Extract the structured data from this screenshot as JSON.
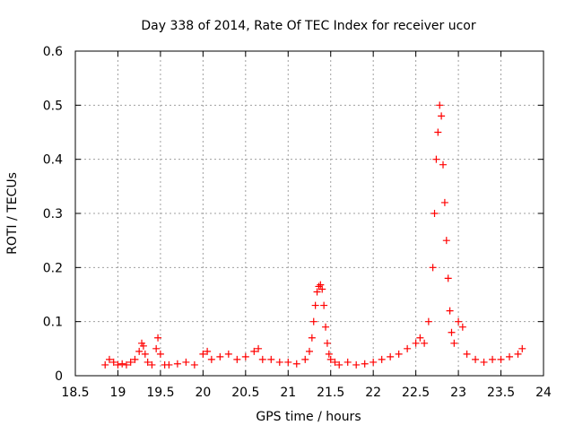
{
  "chart_data": {
    "type": "scatter",
    "title": "Day 338 of 2014, Rate Of TEC Index for receiver ucor",
    "xlabel": "GPS time / hours",
    "ylabel": "ROTI / TECUs",
    "xlim": [
      18.5,
      24
    ],
    "ylim": [
      0,
      0.6
    ],
    "xticks": [
      18.5,
      19,
      19.5,
      20,
      20.5,
      21,
      21.5,
      22,
      22.5,
      23,
      23.5,
      24
    ],
    "xtick_labels": [
      "18.5",
      "19",
      "19.5",
      "20",
      "20.5",
      "21",
      "21.5",
      "22",
      "22.5",
      "23",
      "23.5",
      "24"
    ],
    "yticks": [
      0,
      0.1,
      0.2,
      0.3,
      0.4,
      0.5,
      0.6
    ],
    "ytick_labels": [
      "0",
      "0.1",
      "0.2",
      "0.3",
      "0.4",
      "0.5",
      "0.6"
    ],
    "grid": true,
    "marker": "+",
    "color": "#ff0000",
    "series": [
      {
        "name": "ROTI",
        "x": [
          18.85,
          18.9,
          18.95,
          19.0,
          19.05,
          19.1,
          19.15,
          19.2,
          19.25,
          19.28,
          19.3,
          19.32,
          19.35,
          19.4,
          19.45,
          19.47,
          19.5,
          19.55,
          19.6,
          19.7,
          19.8,
          19.9,
          20.0,
          20.05,
          20.1,
          20.2,
          20.3,
          20.4,
          20.5,
          20.6,
          20.65,
          20.7,
          20.8,
          20.9,
          21.0,
          21.1,
          21.2,
          21.25,
          21.28,
          21.3,
          21.32,
          21.34,
          21.36,
          21.38,
          21.4,
          21.42,
          21.44,
          21.46,
          21.48,
          21.5,
          21.55,
          21.6,
          21.7,
          21.8,
          21.9,
          22.0,
          22.1,
          22.2,
          22.3,
          22.4,
          22.5,
          22.55,
          22.6,
          22.65,
          22.7,
          22.72,
          22.74,
          22.76,
          22.78,
          22.8,
          22.82,
          22.84,
          22.86,
          22.88,
          22.9,
          22.92,
          22.95,
          23.0,
          23.05,
          23.1,
          23.2,
          23.3,
          23.4,
          23.5,
          23.6,
          23.7,
          23.75
        ],
        "y": [
          0.02,
          0.03,
          0.025,
          0.02,
          0.022,
          0.02,
          0.025,
          0.03,
          0.045,
          0.06,
          0.055,
          0.04,
          0.025,
          0.02,
          0.05,
          0.07,
          0.04,
          0.02,
          0.02,
          0.022,
          0.025,
          0.02,
          0.04,
          0.045,
          0.03,
          0.035,
          0.04,
          0.03,
          0.035,
          0.045,
          0.05,
          0.03,
          0.03,
          0.025,
          0.025,
          0.022,
          0.03,
          0.045,
          0.07,
          0.1,
          0.13,
          0.155,
          0.165,
          0.168,
          0.16,
          0.13,
          0.09,
          0.06,
          0.04,
          0.03,
          0.025,
          0.02,
          0.025,
          0.02,
          0.022,
          0.025,
          0.03,
          0.035,
          0.04,
          0.05,
          0.06,
          0.07,
          0.06,
          0.1,
          0.2,
          0.3,
          0.4,
          0.45,
          0.5,
          0.48,
          0.39,
          0.32,
          0.25,
          0.18,
          0.12,
          0.08,
          0.06,
          0.1,
          0.09,
          0.04,
          0.03,
          0.025,
          0.03,
          0.03,
          0.035,
          0.04,
          0.05
        ]
      }
    ]
  }
}
